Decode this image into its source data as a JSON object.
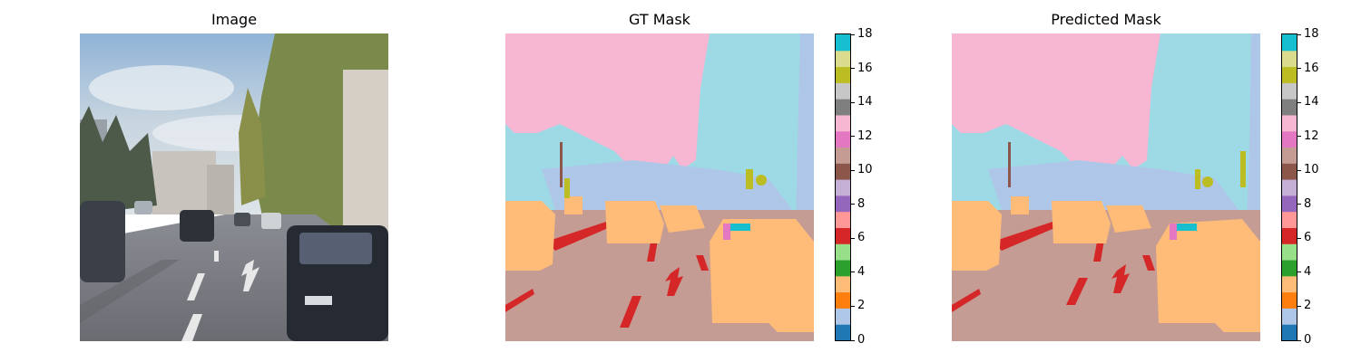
{
  "titles": {
    "image": "Image",
    "gt": "GT Mask",
    "pred": "Predicted Mask"
  },
  "colorbar": {
    "min": 0,
    "max": 18,
    "ticks": [
      "0",
      "2",
      "4",
      "6",
      "8",
      "10",
      "12",
      "14",
      "16",
      "18"
    ],
    "colormap": "tab20",
    "colors": [
      "#1f77b4",
      "#aec7e8",
      "#ff7f0e",
      "#ffbb78",
      "#2ca02c",
      "#98df8a",
      "#d62728",
      "#ff9896",
      "#9467bd",
      "#c5b0d5",
      "#8c564b",
      "#c49c94",
      "#e377c2",
      "#f7b6d2",
      "#7f7f7f",
      "#c7c7c7",
      "#bcbd22",
      "#dbdb8d",
      "#17becf",
      "#9edae5"
    ]
  },
  "chart_data": {
    "type": "heatmap",
    "panels": [
      "Image",
      "GT Mask",
      "Predicted Mask"
    ],
    "colorbar_range": [
      0,
      18
    ],
    "colorbar_ticks": [
      0,
      2,
      4,
      6,
      8,
      10,
      12,
      14,
      16,
      18
    ],
    "classes_visible": {
      "road": 10,
      "sky": 12,
      "vegetation": 18,
      "building": 1,
      "car": 3,
      "lane_marking": 6,
      "sign": 16,
      "pole": 10,
      "sidewalk": 12
    }
  }
}
